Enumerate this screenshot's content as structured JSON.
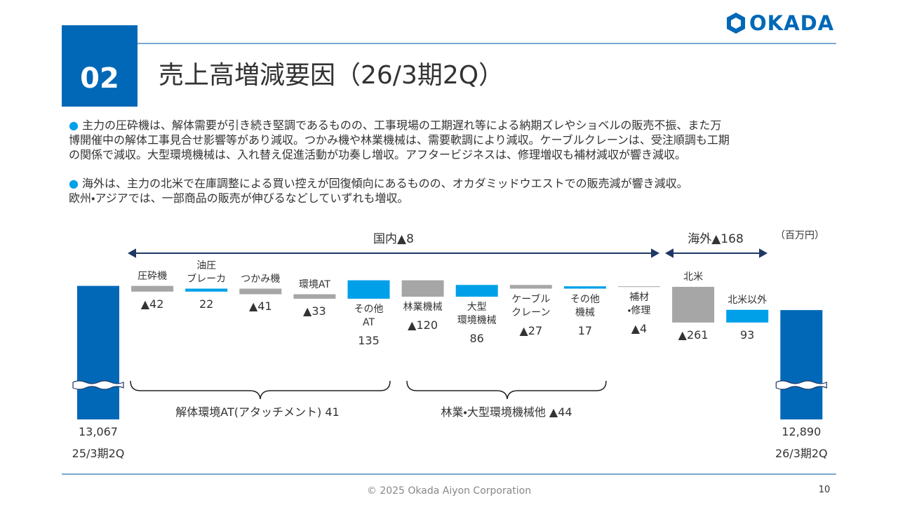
{
  "header": {
    "number": "02",
    "title": "売上高増減要因（26/3期2Q）",
    "logo": "OKADA"
  },
  "bullets": [
    {
      "lines": [
        "主力の圧砕機は、解体需要が引き続き堅調であるものの、工事現場の工期遅れ等による納期ズレやショベルの販売不振、また万",
        "博開催中の解体工事見合せ影響等があり減収。つかみ機や林業機械は、需要軟調により減収。ケーブルクレーンは、受注順調も工期",
        "の関係で減収。大型環境機械は、入れ替え促進活動が功奏し増収。アフタービジネスは、修理増収も補材減収が響き減収。"
      ]
    },
    {
      "lines": [
        "海外は、主力の北米で在庫調整による買い控えが回復傾向にあるものの、オカダミッドウエストでの販売減が響き減収。",
        "欧州・アジアでは、一部商品の販売が伸びるなどしていずれも増収。"
      ]
    }
  ],
  "chart_data": {
    "type": "waterfall",
    "unit": "（百万円）",
    "categories": [
      "25/3期2Q",
      "圧砕機",
      "油圧\nブレーカ",
      "つかみ機",
      "環境AT",
      "その他\nAT",
      "林業機械",
      "大型\n環境機械",
      "ケーブル\nクレーン",
      "その他\n機械",
      "補材\n・修理",
      "北米",
      "北米以外",
      "26/3期2Q"
    ],
    "values": [
      13067,
      -42,
      22,
      -41,
      -33,
      135,
      -120,
      86,
      -27,
      17,
      -4,
      -261,
      93,
      12890
    ],
    "value_labels": [
      "13,067",
      "▲42",
      "22",
      "▲41",
      "▲33",
      "135",
      "▲120",
      "86",
      "▲27",
      "17",
      "▲4",
      "▲261",
      "93",
      "12,890"
    ],
    "measure": [
      "total",
      "relative",
      "relative",
      "relative",
      "relative",
      "relative",
      "relative",
      "relative",
      "relative",
      "relative",
      "relative",
      "relative",
      "relative",
      "total"
    ],
    "colors": {
      "total": "#0068b7",
      "increase": "#00a0e9",
      "decrease": "#a6a6a6"
    },
    "ylim": [
      12090,
      13260
    ],
    "annotations": {
      "domestic": "国内▲8",
      "overseas": "海外▲168",
      "attachments": "解体環境AT(アタッチメント) 41",
      "machinery": "林業・大型環境機械他 ▲44"
    }
  },
  "footer": {
    "copyright": "© 2025 Okada Aiyon Corporation",
    "page": "10"
  }
}
